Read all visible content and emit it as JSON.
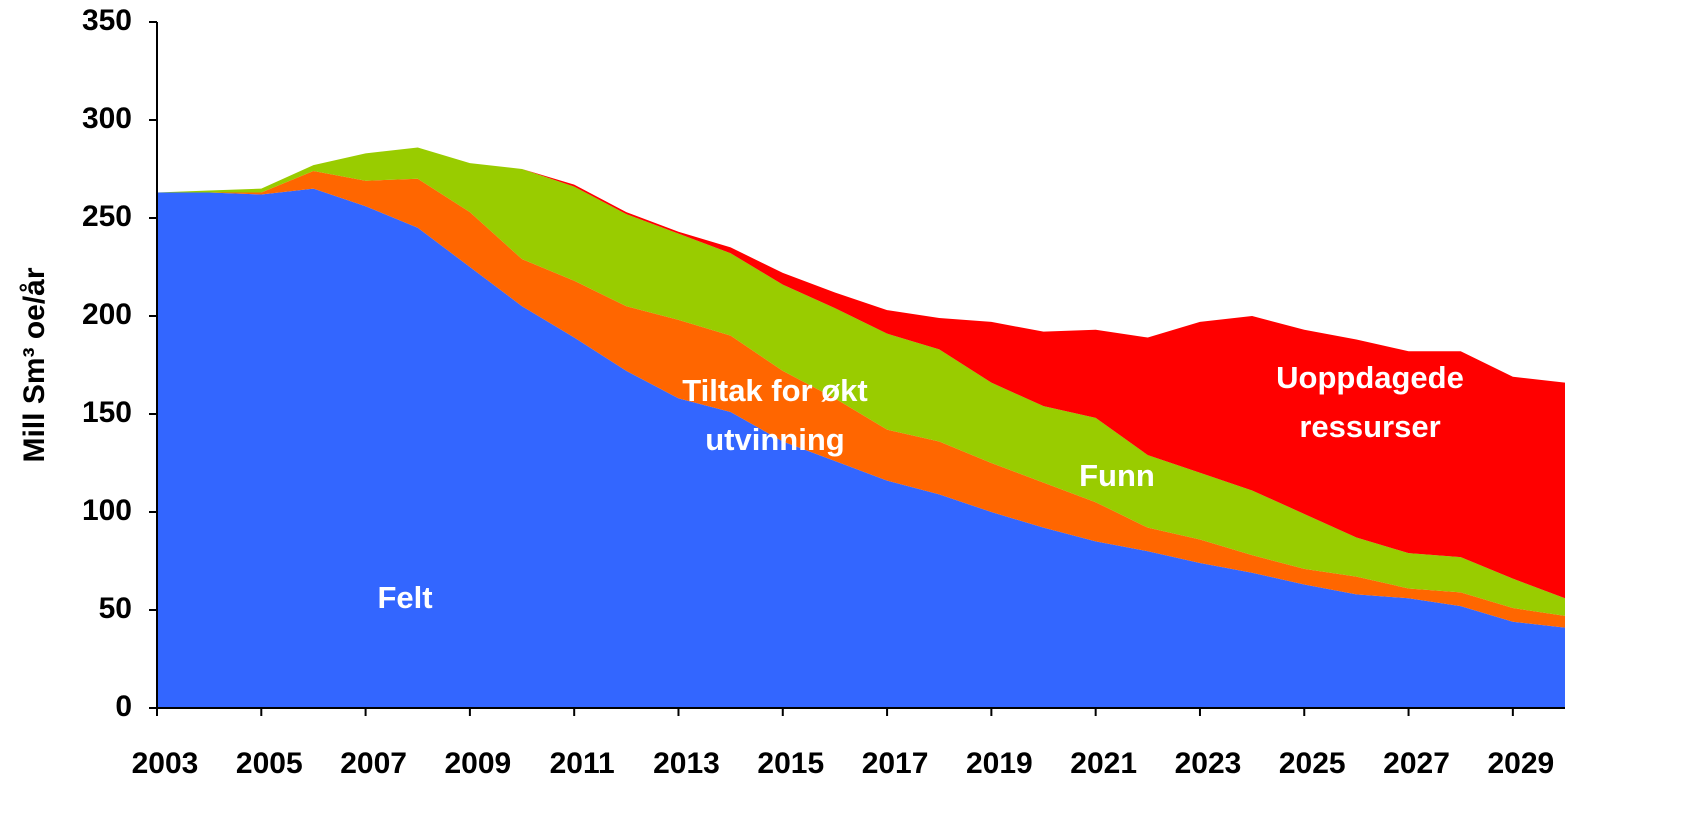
{
  "chart_data": {
    "type": "stacked-area",
    "y_label": "Mill Sm³ oe/år",
    "x": [
      2003,
      2004,
      2005,
      2006,
      2007,
      2008,
      2009,
      2010,
      2011,
      2012,
      2013,
      2014,
      2015,
      2016,
      2017,
      2018,
      2019,
      2020,
      2021,
      2022,
      2023,
      2024,
      2025,
      2026,
      2027,
      2028,
      2029,
      2030
    ],
    "xlim": [
      2003,
      2030
    ],
    "xticks": [
      2003,
      2005,
      2007,
      2009,
      2011,
      2013,
      2015,
      2017,
      2019,
      2021,
      2023,
      2025,
      2027,
      2029
    ],
    "ylim": [
      0,
      350
    ],
    "yticks": [
      0,
      50,
      100,
      150,
      200,
      250,
      300,
      350
    ],
    "series": [
      {
        "label": [
          "Felt"
        ],
        "color": "#3366ff",
        "values": [
          263,
          263,
          262,
          265,
          256,
          245,
          225,
          205,
          189,
          172,
          158,
          151,
          136,
          126,
          116,
          109,
          100,
          92,
          85,
          80,
          74,
          69,
          63,
          58,
          56,
          52,
          44,
          41
        ]
      },
      {
        "label": [
          "Tiltak for økt",
          "utvinning"
        ],
        "color": "#ff6600",
        "values": [
          0,
          0,
          1,
          9,
          13,
          25,
          28,
          24,
          29,
          33,
          40,
          39,
          36,
          32,
          26,
          27,
          25,
          23,
          20,
          12,
          12,
          9,
          8,
          9,
          5,
          7,
          7,
          6
        ]
      },
      {
        "label": [
          "Funn"
        ],
        "color": "#99cc00",
        "values": [
          0,
          1,
          2,
          3,
          14,
          16,
          25,
          46,
          48,
          47,
          44,
          42,
          44,
          46,
          49,
          47,
          41,
          39,
          43,
          37,
          34,
          33,
          28,
          20,
          18,
          18,
          15,
          9
        ]
      },
      {
        "label": [
          "Uoppdagede",
          "ressurser"
        ],
        "color": "#ff0000",
        "values": [
          0,
          0,
          0,
          0,
          0,
          0,
          0,
          0,
          1,
          1,
          1,
          3,
          6,
          8,
          12,
          16,
          31,
          38,
          45,
          60,
          77,
          89,
          94,
          101,
          103,
          105,
          103,
          110
        ]
      }
    ]
  }
}
